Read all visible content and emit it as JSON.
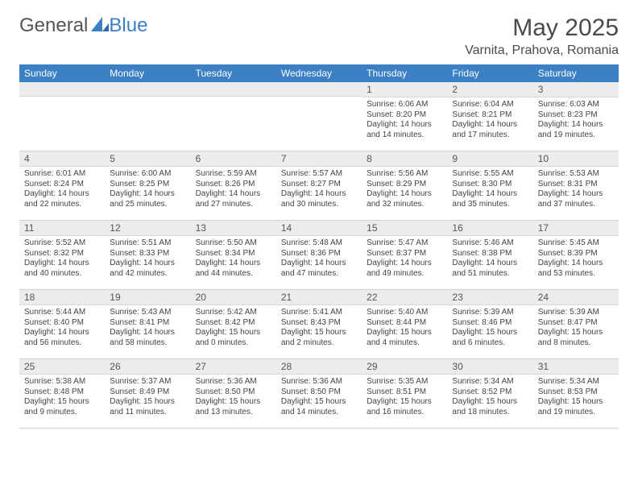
{
  "logo": {
    "text_general": "General",
    "text_blue": "Blue"
  },
  "title": "May 2025",
  "location": "Varnita, Prahova, Romania",
  "colors": {
    "header_bg": "#3b7fc4",
    "header_text": "#ffffff",
    "date_bar_bg": "#ececec",
    "border": "#d0d0d0",
    "body_text": "#444444"
  },
  "typography": {
    "title_fontsize": 30,
    "location_fontsize": 16,
    "dayheader_fontsize": 12,
    "date_fontsize": 12,
    "body_fontsize": 10
  },
  "day_names": [
    "Sunday",
    "Monday",
    "Tuesday",
    "Wednesday",
    "Thursday",
    "Friday",
    "Saturday"
  ],
  "weeks": [
    [
      {
        "date": "",
        "sunrise": "",
        "sunset": "",
        "daylight1": "",
        "daylight2": ""
      },
      {
        "date": "",
        "sunrise": "",
        "sunset": "",
        "daylight1": "",
        "daylight2": ""
      },
      {
        "date": "",
        "sunrise": "",
        "sunset": "",
        "daylight1": "",
        "daylight2": ""
      },
      {
        "date": "",
        "sunrise": "",
        "sunset": "",
        "daylight1": "",
        "daylight2": ""
      },
      {
        "date": "1",
        "sunrise": "Sunrise: 6:06 AM",
        "sunset": "Sunset: 8:20 PM",
        "daylight1": "Daylight: 14 hours",
        "daylight2": "and 14 minutes."
      },
      {
        "date": "2",
        "sunrise": "Sunrise: 6:04 AM",
        "sunset": "Sunset: 8:21 PM",
        "daylight1": "Daylight: 14 hours",
        "daylight2": "and 17 minutes."
      },
      {
        "date": "3",
        "sunrise": "Sunrise: 6:03 AM",
        "sunset": "Sunset: 8:23 PM",
        "daylight1": "Daylight: 14 hours",
        "daylight2": "and 19 minutes."
      }
    ],
    [
      {
        "date": "4",
        "sunrise": "Sunrise: 6:01 AM",
        "sunset": "Sunset: 8:24 PM",
        "daylight1": "Daylight: 14 hours",
        "daylight2": "and 22 minutes."
      },
      {
        "date": "5",
        "sunrise": "Sunrise: 6:00 AM",
        "sunset": "Sunset: 8:25 PM",
        "daylight1": "Daylight: 14 hours",
        "daylight2": "and 25 minutes."
      },
      {
        "date": "6",
        "sunrise": "Sunrise: 5:59 AM",
        "sunset": "Sunset: 8:26 PM",
        "daylight1": "Daylight: 14 hours",
        "daylight2": "and 27 minutes."
      },
      {
        "date": "7",
        "sunrise": "Sunrise: 5:57 AM",
        "sunset": "Sunset: 8:27 PM",
        "daylight1": "Daylight: 14 hours",
        "daylight2": "and 30 minutes."
      },
      {
        "date": "8",
        "sunrise": "Sunrise: 5:56 AM",
        "sunset": "Sunset: 8:29 PM",
        "daylight1": "Daylight: 14 hours",
        "daylight2": "and 32 minutes."
      },
      {
        "date": "9",
        "sunrise": "Sunrise: 5:55 AM",
        "sunset": "Sunset: 8:30 PM",
        "daylight1": "Daylight: 14 hours",
        "daylight2": "and 35 minutes."
      },
      {
        "date": "10",
        "sunrise": "Sunrise: 5:53 AM",
        "sunset": "Sunset: 8:31 PM",
        "daylight1": "Daylight: 14 hours",
        "daylight2": "and 37 minutes."
      }
    ],
    [
      {
        "date": "11",
        "sunrise": "Sunrise: 5:52 AM",
        "sunset": "Sunset: 8:32 PM",
        "daylight1": "Daylight: 14 hours",
        "daylight2": "and 40 minutes."
      },
      {
        "date": "12",
        "sunrise": "Sunrise: 5:51 AM",
        "sunset": "Sunset: 8:33 PM",
        "daylight1": "Daylight: 14 hours",
        "daylight2": "and 42 minutes."
      },
      {
        "date": "13",
        "sunrise": "Sunrise: 5:50 AM",
        "sunset": "Sunset: 8:34 PM",
        "daylight1": "Daylight: 14 hours",
        "daylight2": "and 44 minutes."
      },
      {
        "date": "14",
        "sunrise": "Sunrise: 5:48 AM",
        "sunset": "Sunset: 8:36 PM",
        "daylight1": "Daylight: 14 hours",
        "daylight2": "and 47 minutes."
      },
      {
        "date": "15",
        "sunrise": "Sunrise: 5:47 AM",
        "sunset": "Sunset: 8:37 PM",
        "daylight1": "Daylight: 14 hours",
        "daylight2": "and 49 minutes."
      },
      {
        "date": "16",
        "sunrise": "Sunrise: 5:46 AM",
        "sunset": "Sunset: 8:38 PM",
        "daylight1": "Daylight: 14 hours",
        "daylight2": "and 51 minutes."
      },
      {
        "date": "17",
        "sunrise": "Sunrise: 5:45 AM",
        "sunset": "Sunset: 8:39 PM",
        "daylight1": "Daylight: 14 hours",
        "daylight2": "and 53 minutes."
      }
    ],
    [
      {
        "date": "18",
        "sunrise": "Sunrise: 5:44 AM",
        "sunset": "Sunset: 8:40 PM",
        "daylight1": "Daylight: 14 hours",
        "daylight2": "and 56 minutes."
      },
      {
        "date": "19",
        "sunrise": "Sunrise: 5:43 AM",
        "sunset": "Sunset: 8:41 PM",
        "daylight1": "Daylight: 14 hours",
        "daylight2": "and 58 minutes."
      },
      {
        "date": "20",
        "sunrise": "Sunrise: 5:42 AM",
        "sunset": "Sunset: 8:42 PM",
        "daylight1": "Daylight: 15 hours",
        "daylight2": "and 0 minutes."
      },
      {
        "date": "21",
        "sunrise": "Sunrise: 5:41 AM",
        "sunset": "Sunset: 8:43 PM",
        "daylight1": "Daylight: 15 hours",
        "daylight2": "and 2 minutes."
      },
      {
        "date": "22",
        "sunrise": "Sunrise: 5:40 AM",
        "sunset": "Sunset: 8:44 PM",
        "daylight1": "Daylight: 15 hours",
        "daylight2": "and 4 minutes."
      },
      {
        "date": "23",
        "sunrise": "Sunrise: 5:39 AM",
        "sunset": "Sunset: 8:46 PM",
        "daylight1": "Daylight: 15 hours",
        "daylight2": "and 6 minutes."
      },
      {
        "date": "24",
        "sunrise": "Sunrise: 5:39 AM",
        "sunset": "Sunset: 8:47 PM",
        "daylight1": "Daylight: 15 hours",
        "daylight2": "and 8 minutes."
      }
    ],
    [
      {
        "date": "25",
        "sunrise": "Sunrise: 5:38 AM",
        "sunset": "Sunset: 8:48 PM",
        "daylight1": "Daylight: 15 hours",
        "daylight2": "and 9 minutes."
      },
      {
        "date": "26",
        "sunrise": "Sunrise: 5:37 AM",
        "sunset": "Sunset: 8:49 PM",
        "daylight1": "Daylight: 15 hours",
        "daylight2": "and 11 minutes."
      },
      {
        "date": "27",
        "sunrise": "Sunrise: 5:36 AM",
        "sunset": "Sunset: 8:50 PM",
        "daylight1": "Daylight: 15 hours",
        "daylight2": "and 13 minutes."
      },
      {
        "date": "28",
        "sunrise": "Sunrise: 5:36 AM",
        "sunset": "Sunset: 8:50 PM",
        "daylight1": "Daylight: 15 hours",
        "daylight2": "and 14 minutes."
      },
      {
        "date": "29",
        "sunrise": "Sunrise: 5:35 AM",
        "sunset": "Sunset: 8:51 PM",
        "daylight1": "Daylight: 15 hours",
        "daylight2": "and 16 minutes."
      },
      {
        "date": "30",
        "sunrise": "Sunrise: 5:34 AM",
        "sunset": "Sunset: 8:52 PM",
        "daylight1": "Daylight: 15 hours",
        "daylight2": "and 18 minutes."
      },
      {
        "date": "31",
        "sunrise": "Sunrise: 5:34 AM",
        "sunset": "Sunset: 8:53 PM",
        "daylight1": "Daylight: 15 hours",
        "daylight2": "and 19 minutes."
      }
    ]
  ]
}
